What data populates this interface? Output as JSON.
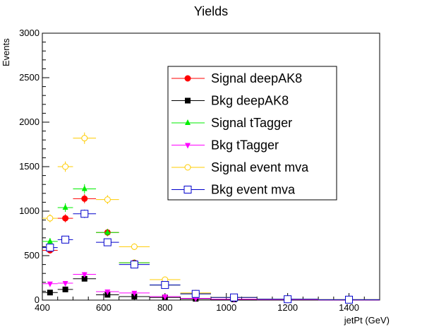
{
  "chart_data": {
    "type": "scatter",
    "title": "Yields",
    "xlabel": "jetPt (GeV)",
    "ylabel": "Events",
    "xlim": [
      400,
      1500
    ],
    "ylim": [
      0,
      3000
    ],
    "x_ticks": [
      400,
      600,
      800,
      1000,
      1200,
      1400
    ],
    "y_ticks": [
      0,
      500,
      1000,
      1500,
      2000,
      2500,
      3000
    ],
    "grid": false,
    "legend_position": "top-right",
    "bins": [
      {
        "low": 400,
        "high": 450
      },
      {
        "low": 450,
        "high": 500
      },
      {
        "low": 500,
        "high": 575
      },
      {
        "low": 575,
        "high": 650
      },
      {
        "low": 650,
        "high": 750
      },
      {
        "low": 750,
        "high": 850
      },
      {
        "low": 850,
        "high": 950
      },
      {
        "low": 950,
        "high": 1100
      },
      {
        "low": 1100,
        "high": 1300
      },
      {
        "low": 1300,
        "high": 1500
      }
    ],
    "series": [
      {
        "name": "Signal deepAK8",
        "color": "#ff0000",
        "marker": "circle-filled",
        "values": [
          560,
          920,
          1140,
          760,
          420,
          170,
          70,
          30,
          10,
          5
        ]
      },
      {
        "name": "Bkg deepAK8",
        "color": "#000000",
        "marker": "square-filled",
        "values": [
          85,
          120,
          240,
          60,
          40,
          30,
          15,
          8,
          5,
          2
        ]
      },
      {
        "name": "Signal tTagger",
        "color": "#00ee00",
        "marker": "triangle-up-filled",
        "values": [
          660,
          1040,
          1250,
          760,
          420,
          170,
          70,
          30,
          10,
          5
        ]
      },
      {
        "name": "Bkg tTagger",
        "color": "#ff00ff",
        "marker": "triangle-down-filled",
        "values": [
          185,
          190,
          290,
          95,
          80,
          40,
          20,
          10,
          5,
          2
        ]
      },
      {
        "name": "Signal event mva",
        "color": "#ffcc00",
        "marker": "circle-open",
        "values": [
          920,
          1500,
          1820,
          1130,
          600,
          230,
          80,
          30,
          10,
          5
        ]
      },
      {
        "name": "Bkg event mva",
        "color": "#0000cc",
        "marker": "square-open",
        "values": [
          590,
          680,
          970,
          650,
          400,
          170,
          70,
          30,
          10,
          5
        ]
      }
    ]
  }
}
